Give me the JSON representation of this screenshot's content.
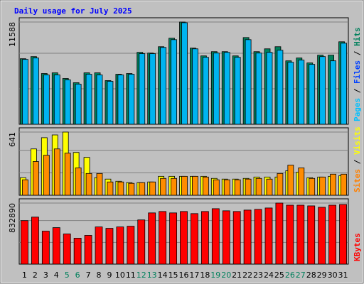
{
  "title": "Daily usage for July 2025",
  "chart_data": [
    {
      "type": "bar",
      "ylim": [
        0,
        11588
      ],
      "yticks": [
        11588
      ],
      "side_labels": [
        {
          "text": "Pages",
          "color": "#00c0ff"
        },
        {
          "text": "Files",
          "color": "#0040ff"
        },
        {
          "text": "Hits",
          "color": "#00805c"
        }
      ],
      "series": [
        {
          "name": "Hits",
          "color": "#00805c",
          "values": [
            7430,
            7670,
            5750,
            5830,
            5190,
            4710,
            5830,
            5830,
            4950,
            5670,
            5750,
            8150,
            8070,
            8790,
            9750,
            11588,
            8630,
            7750,
            8230,
            8230,
            7750,
            9830,
            8230,
            8550,
            8790,
            7190,
            7510,
            6950,
            7830,
            7830,
            9350
          ]
        },
        {
          "name": "Files",
          "color": "#00b4f0",
          "values": [
            7350,
            7510,
            5590,
            5590,
            5030,
            4550,
            5670,
            5590,
            4870,
            5590,
            5670,
            8000,
            8000,
            8710,
            9590,
            11510,
            8550,
            7590,
            8070,
            8150,
            7590,
            9590,
            8070,
            8150,
            8390,
            7030,
            7270,
            6790,
            7670,
            7190,
            9190
          ]
        }
      ]
    },
    {
      "type": "bar",
      "ylim": [
        0,
        641
      ],
      "yticks": [
        641
      ],
      "side_labels": [
        {
          "text": "Sites",
          "color": "#ff8000"
        },
        {
          "text": "Visits",
          "color": "#ffff00"
        }
      ],
      "series": [
        {
          "name": "Visits",
          "color": "#ffff00",
          "values": [
            178,
            470,
            584,
            612,
            641,
            434,
            384,
            178,
            164,
            142,
            128,
            128,
            135,
            192,
            192,
            192,
            192,
            192,
            171,
            164,
            164,
            171,
            185,
            185,
            185,
            249,
            235,
            178,
            185,
            192,
            199
          ]
        },
        {
          "name": "Sites",
          "color": "#ff8c00",
          "values": [
            157,
            342,
            406,
            470,
            427,
            278,
            221,
            221,
            135,
            135,
            121,
            128,
            135,
            171,
            171,
            192,
            192,
            185,
            157,
            157,
            157,
            164,
            171,
            164,
            221,
            306,
            278,
            171,
            185,
            214,
            214
          ]
        }
      ]
    },
    {
      "type": "bar",
      "ylim": [
        0,
        832890
      ],
      "yticks": [
        832890
      ],
      "side_labels": [
        {
          "text": "KBytes",
          "color": "#ff0000"
        }
      ],
      "categories": [
        "1",
        "2",
        "3",
        "4",
        "5",
        "6",
        "7",
        "8",
        "9",
        "10",
        "11",
        "12",
        "13",
        "14",
        "15",
        "16",
        "17",
        "18",
        "19",
        "20",
        "21",
        "22",
        "23",
        "24",
        "25",
        "26",
        "27",
        "28",
        "29",
        "30",
        "31"
      ],
      "highlight_indices": [
        4,
        5,
        11,
        12,
        18,
        19,
        25,
        26
      ],
      "highlight_color": "#00805c",
      "series": [
        {
          "name": "KBytes",
          "color": "#ff0000",
          "values": [
            593500,
            641400,
            449900,
            497800,
            411600,
            354200,
            392500,
            507400,
            488200,
            507400,
            516900,
            603100,
            698800,
            718000,
            698800,
            718000,
            689300,
            718000,
            756300,
            727500,
            718000,
            737100,
            746700,
            765800,
            832890,
            804100,
            804100,
            794600,
            775400,
            804100,
            813700
          ]
        }
      ]
    }
  ]
}
